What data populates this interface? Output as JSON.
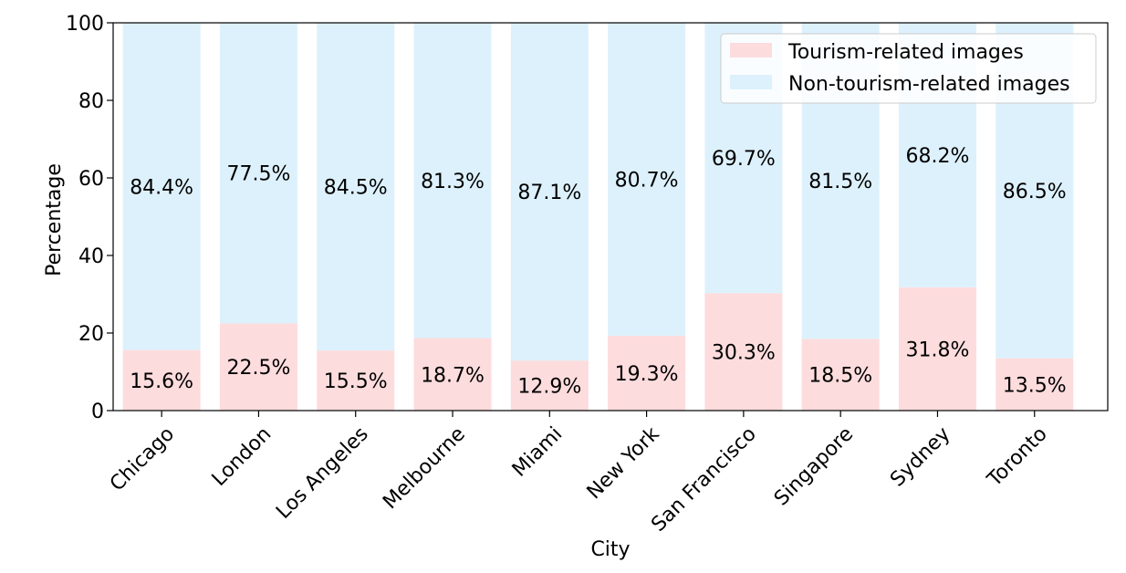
{
  "chart_data": {
    "type": "bar",
    "stacked": true,
    "categories": [
      "Chicago",
      "London",
      "Los Angeles",
      "Melbourne",
      "Miami",
      "New York",
      "San Francisco",
      "Singapore",
      "Sydney",
      "Toronto"
    ],
    "series": [
      {
        "name": "Tourism-related images",
        "values": [
          15.6,
          22.5,
          15.5,
          18.7,
          12.9,
          19.3,
          30.3,
          18.5,
          31.8,
          13.5
        ],
        "labels": [
          "15.6%",
          "22.5%",
          "15.5%",
          "18.7%",
          "12.9%",
          "19.3%",
          "30.3%",
          "18.5%",
          "31.8%",
          "13.5%"
        ],
        "color": "#fddcdd"
      },
      {
        "name": "Non-tourism-related images",
        "values": [
          84.4,
          77.5,
          84.5,
          81.3,
          87.1,
          80.7,
          69.7,
          81.5,
          68.2,
          86.5
        ],
        "labels": [
          "84.4%",
          "77.5%",
          "84.5%",
          "81.3%",
          "87.1%",
          "80.7%",
          "69.7%",
          "81.5%",
          "68.2%",
          "86.5%"
        ],
        "color": "#ddf1fc"
      }
    ],
    "xlabel": "City",
    "ylabel": "Percentage",
    "ylim": [
      0,
      100
    ],
    "yticks": [
      "0",
      "20",
      "40",
      "60",
      "80",
      "100"
    ],
    "grid": false,
    "legend_position": "top-right"
  }
}
